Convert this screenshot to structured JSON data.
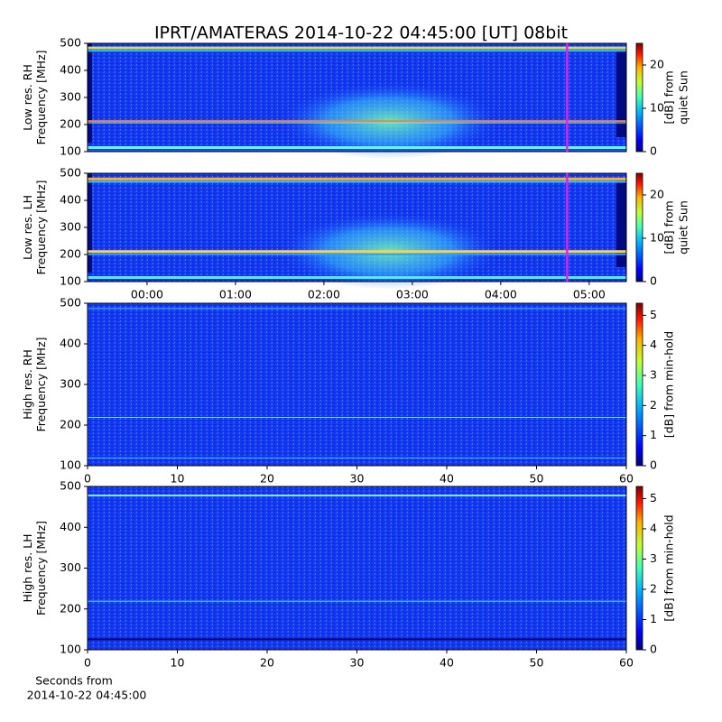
{
  "title": "IPRT/AMATERAS 2014-10-22 04:45:00 [UT]   08bit",
  "chart_data": [
    {
      "type": "heatmap",
      "ylabel": [
        "Low res. RH",
        "Frequency [MHz]"
      ],
      "ylim": [
        100,
        500
      ],
      "yticks": [
        100,
        200,
        300,
        400,
        500
      ],
      "xlim": [
        -0.673,
        5.42
      ],
      "marker_x": 4.75,
      "marker_color": "#e81ee8",
      "colormap": "jet",
      "clim": [
        0,
        25
      ],
      "cticks": [
        0,
        10,
        20
      ],
      "colorbar_label": [
        "[dB] from",
        "quiet Sun"
      ]
    },
    {
      "type": "heatmap",
      "ylabel": [
        "Low res. LH",
        "Frequency [MHz]"
      ],
      "ylim": [
        100,
        500
      ],
      "yticks": [
        100,
        200,
        300,
        400,
        500
      ],
      "xlim": [
        -0.673,
        5.42
      ],
      "xticks": [
        {
          "value": 0,
          "label": "00:00"
        },
        {
          "value": 1,
          "label": "01:00"
        },
        {
          "value": 2,
          "label": "02:00"
        },
        {
          "value": 3,
          "label": "03:00"
        },
        {
          "value": 4,
          "label": "04:00"
        },
        {
          "value": 5,
          "label": "05:00"
        }
      ],
      "marker_x": 4.75,
      "marker_color": "#e81ee8",
      "colormap": "jet",
      "clim": [
        0,
        25
      ],
      "cticks": [
        0,
        10,
        20
      ],
      "colorbar_label": [
        "[dB] from",
        "quiet Sun"
      ]
    },
    {
      "type": "heatmap",
      "ylabel": [
        "High res. RH",
        "Frequency [MHz]"
      ],
      "ylim": [
        100,
        500
      ],
      "yticks": [
        100,
        200,
        300,
        400,
        500
      ],
      "xlim": [
        0,
        60
      ],
      "xticks": [
        0,
        10,
        20,
        30,
        40,
        50,
        60
      ],
      "colormap": "jet",
      "clim": [
        0,
        5.4
      ],
      "cticks": [
        0,
        1,
        2,
        3,
        4,
        5
      ],
      "colorbar_label": [
        "[dB] from min-hold"
      ]
    },
    {
      "type": "heatmap",
      "ylabel": [
        "High res. LH",
        "Frequency [MHz]"
      ],
      "ylim": [
        100,
        500
      ],
      "yticks": [
        100,
        200,
        300,
        400,
        500
      ],
      "xlim": [
        0,
        60
      ],
      "xticks": [
        0,
        10,
        20,
        30,
        40,
        50,
        60
      ],
      "xlabel": [
        "Seconds from",
        "2014-10-22 04:45:00"
      ],
      "colormap": "jet",
      "clim": [
        0,
        5.4
      ],
      "cticks": [
        0,
        1,
        2,
        3,
        4,
        5
      ],
      "colorbar_label": [
        "[dB] from min-hold"
      ]
    }
  ]
}
